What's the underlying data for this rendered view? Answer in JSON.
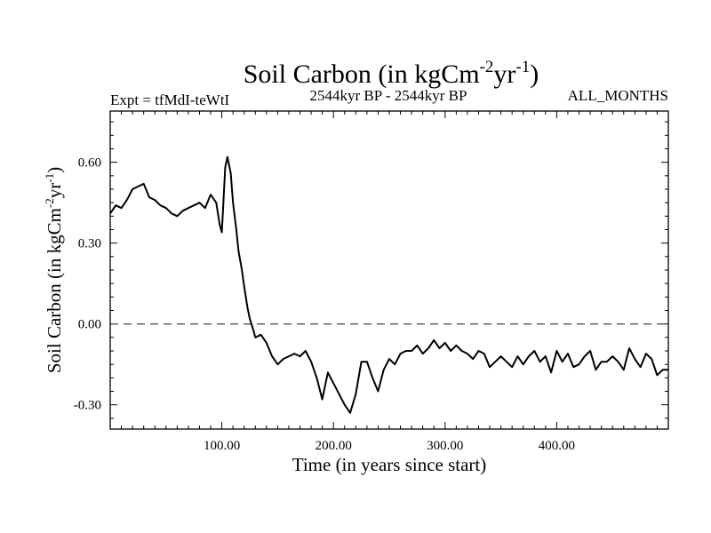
{
  "chart_data": {
    "type": "line",
    "title": "Soil Carbon (in kgCm",
    "title_sup1": "-2",
    "title_mid": "yr",
    "title_sup2": "-1",
    "title_end": ")",
    "subtitle_left": "Expt = tfMdI-teWtI",
    "subtitle_center": "2544kyr BP - 2544kyr BP",
    "subtitle_right": "ALL_MONTHS",
    "xlabel": "Time (in years since start)",
    "ylabel": "Soil Carbon (in kgCm",
    "ylabel_sup1": "-2",
    "ylabel_mid": "yr",
    "ylabel_sup2": "-1",
    "ylabel_end": ")",
    "xlim": [
      0,
      500
    ],
    "ylim": [
      -0.39,
      0.79
    ],
    "x_ticks": [
      100,
      200,
      300,
      400
    ],
    "x_tick_labels": [
      "100.00",
      "200.00",
      "300.00",
      "400.00"
    ],
    "y_ticks": [
      -0.3,
      0.0,
      0.3,
      0.6
    ],
    "y_tick_labels": [
      "-0.30",
      "0.00",
      "0.30",
      "0.60"
    ],
    "reference_line": 0.0,
    "series": [
      {
        "name": "Soil Carbon",
        "x": [
          0,
          5,
          10,
          15,
          20,
          25,
          30,
          35,
          40,
          45,
          50,
          55,
          60,
          65,
          70,
          75,
          80,
          85,
          90,
          95,
          98,
          100,
          103,
          105,
          108,
          110,
          113,
          115,
          118,
          120,
          123,
          125,
          128,
          130,
          135,
          140,
          145,
          150,
          155,
          160,
          165,
          170,
          175,
          180,
          185,
          190,
          195,
          200,
          205,
          210,
          215,
          220,
          225,
          230,
          235,
          240,
          245,
          250,
          255,
          260,
          265,
          270,
          275,
          280,
          285,
          290,
          295,
          300,
          305,
          310,
          315,
          320,
          325,
          330,
          335,
          340,
          345,
          350,
          355,
          360,
          365,
          370,
          375,
          380,
          385,
          390,
          395,
          400,
          405,
          410,
          415,
          420,
          425,
          430,
          435,
          440,
          445,
          450,
          455,
          460,
          465,
          470,
          475,
          480,
          485,
          490,
          495,
          500
        ],
        "y": [
          0.41,
          0.44,
          0.43,
          0.46,
          0.5,
          0.51,
          0.52,
          0.47,
          0.46,
          0.44,
          0.43,
          0.41,
          0.4,
          0.42,
          0.43,
          0.44,
          0.45,
          0.43,
          0.48,
          0.45,
          0.37,
          0.34,
          0.58,
          0.62,
          0.56,
          0.45,
          0.35,
          0.27,
          0.2,
          0.14,
          0.06,
          0.02,
          -0.02,
          -0.05,
          -0.04,
          -0.07,
          -0.12,
          -0.15,
          -0.13,
          -0.12,
          -0.11,
          -0.12,
          -0.1,
          -0.14,
          -0.2,
          -0.28,
          -0.18,
          -0.22,
          -0.26,
          -0.3,
          -0.33,
          -0.26,
          -0.14,
          -0.14,
          -0.2,
          -0.25,
          -0.17,
          -0.13,
          -0.15,
          -0.11,
          -0.1,
          -0.1,
          -0.08,
          -0.11,
          -0.09,
          -0.06,
          -0.09,
          -0.07,
          -0.1,
          -0.08,
          -0.1,
          -0.11,
          -0.13,
          -0.1,
          -0.11,
          -0.16,
          -0.14,
          -0.12,
          -0.14,
          -0.16,
          -0.12,
          -0.15,
          -0.12,
          -0.1,
          -0.14,
          -0.12,
          -0.18,
          -0.1,
          -0.14,
          -0.11,
          -0.16,
          -0.15,
          -0.12,
          -0.1,
          -0.17,
          -0.14,
          -0.14,
          -0.12,
          -0.14,
          -0.17,
          -0.09,
          -0.13,
          -0.16,
          -0.11,
          -0.13,
          -0.19,
          -0.17,
          -0.17
        ]
      }
    ]
  }
}
